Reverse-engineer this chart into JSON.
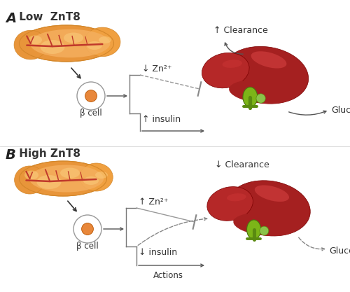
{
  "panel_A_label": "A",
  "panel_B_label": "B",
  "panel_A_title": " Low  ZnT8",
  "panel_B_title": " High ZnT8",
  "beta_cell_label": "β cell",
  "zn_A": "↓ Zn²⁺",
  "zn_B": "↑ Zn²⁺",
  "insulin_A": "↑ insulin",
  "insulin_B": "↓ insulin",
  "clearance_A": "↑ Clearance",
  "clearance_B": "↓ Clearance",
  "glucose_label": "Glucose",
  "actions_label": "Actions",
  "bg_color": "#ffffff"
}
